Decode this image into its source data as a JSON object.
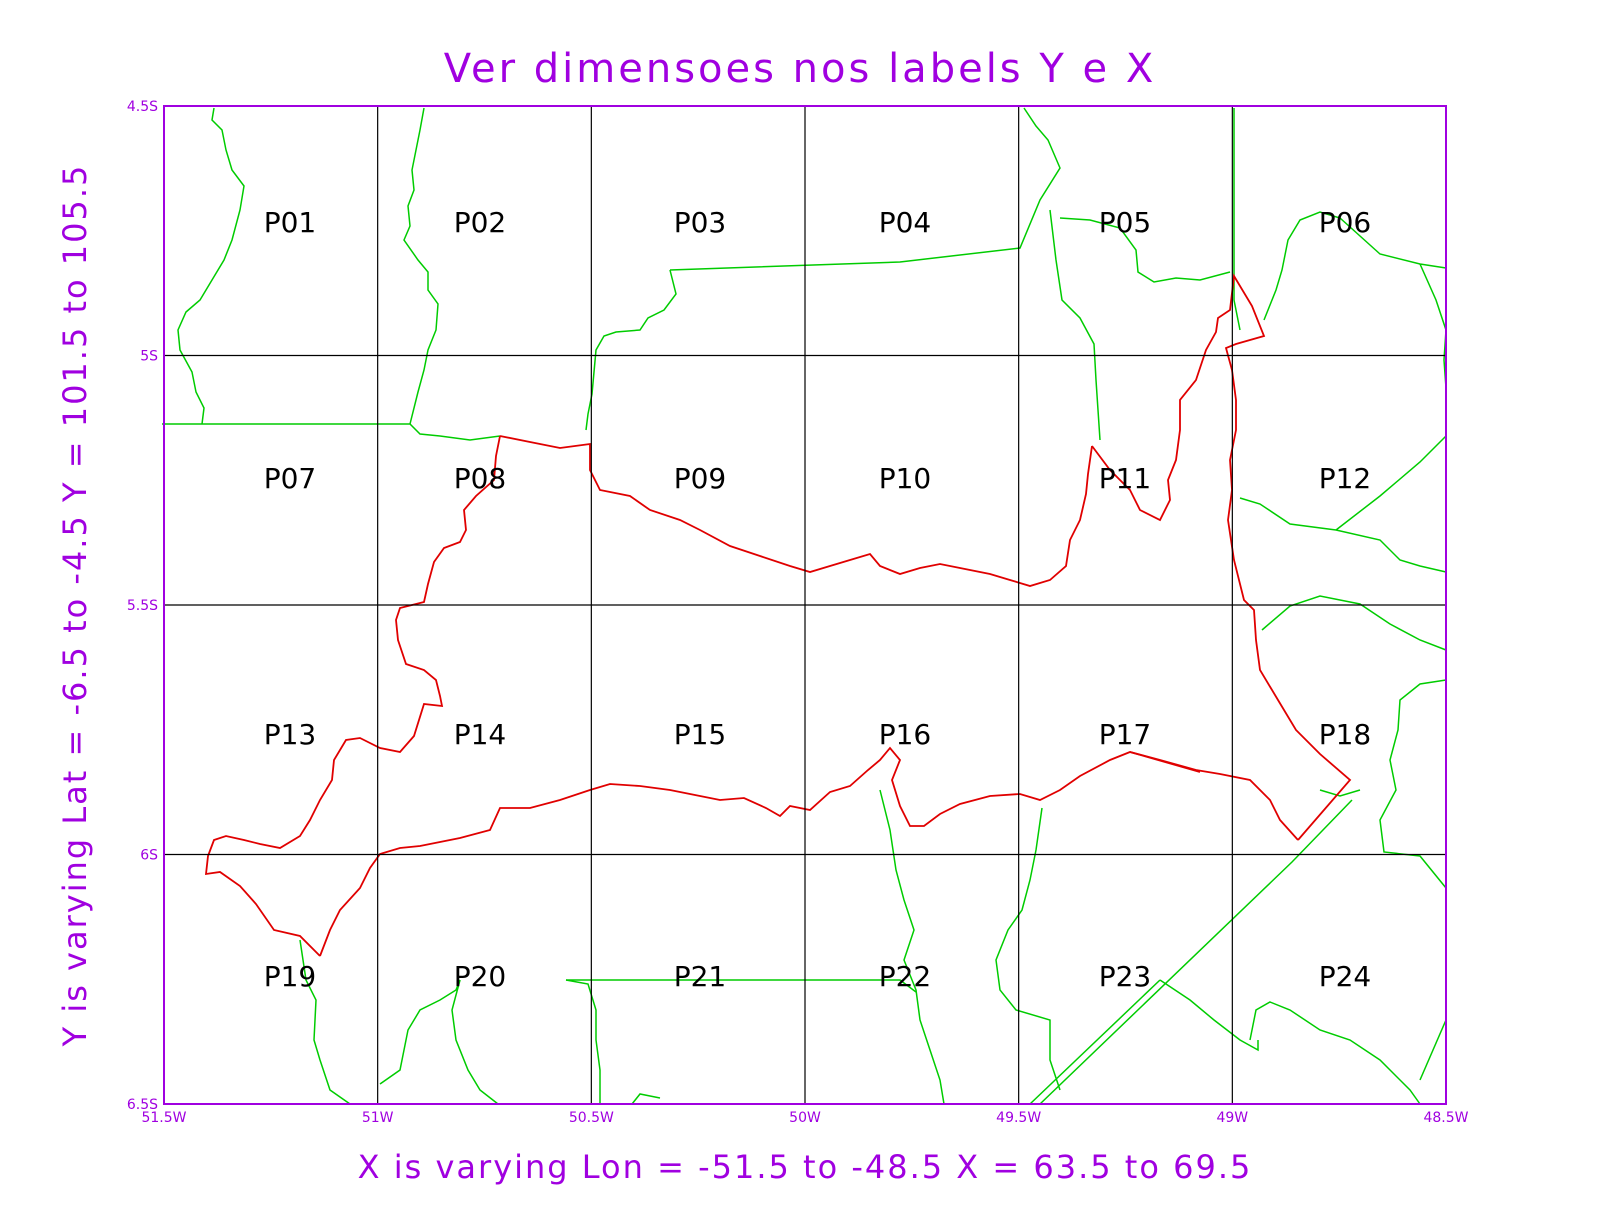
{
  "title": "Ver dimensoes nos labels Y e X",
  "colors": {
    "frame": "#a000e0",
    "grid": "#000000",
    "borders_green": "#00cc00",
    "region_red": "#e00000"
  },
  "x_ticks": [
    "51.5W",
    "51W",
    "50.5W",
    "50W",
    "49.5W",
    "49W",
    "48.5W"
  ],
  "y_ticks": [
    "4.5S",
    "5S",
    "5.5S",
    "6S",
    "6.5S"
  ],
  "cells": [
    [
      "P01",
      "P02",
      "P03",
      "P04",
      "P05",
      "P06"
    ],
    [
      "P07",
      "P08",
      "P09",
      "P10",
      "P11",
      "P12"
    ],
    [
      "P13",
      "P14",
      "P15",
      "P16",
      "P17",
      "P18"
    ],
    [
      "P19",
      "P20",
      "P21",
      "P22",
      "P23",
      "P24"
    ]
  ],
  "side_label": "Y is varying   Lat = -6.5 to -4.5   Y = 101.5 to 105.5",
  "bottom_label": "X is varying   Lon = -51.5 to -48.5   X = 63.5 to 69.5",
  "map_extent": {
    "lon": [
      -51.5,
      -48.5
    ],
    "lat": [
      -6.5,
      -4.5
    ]
  }
}
